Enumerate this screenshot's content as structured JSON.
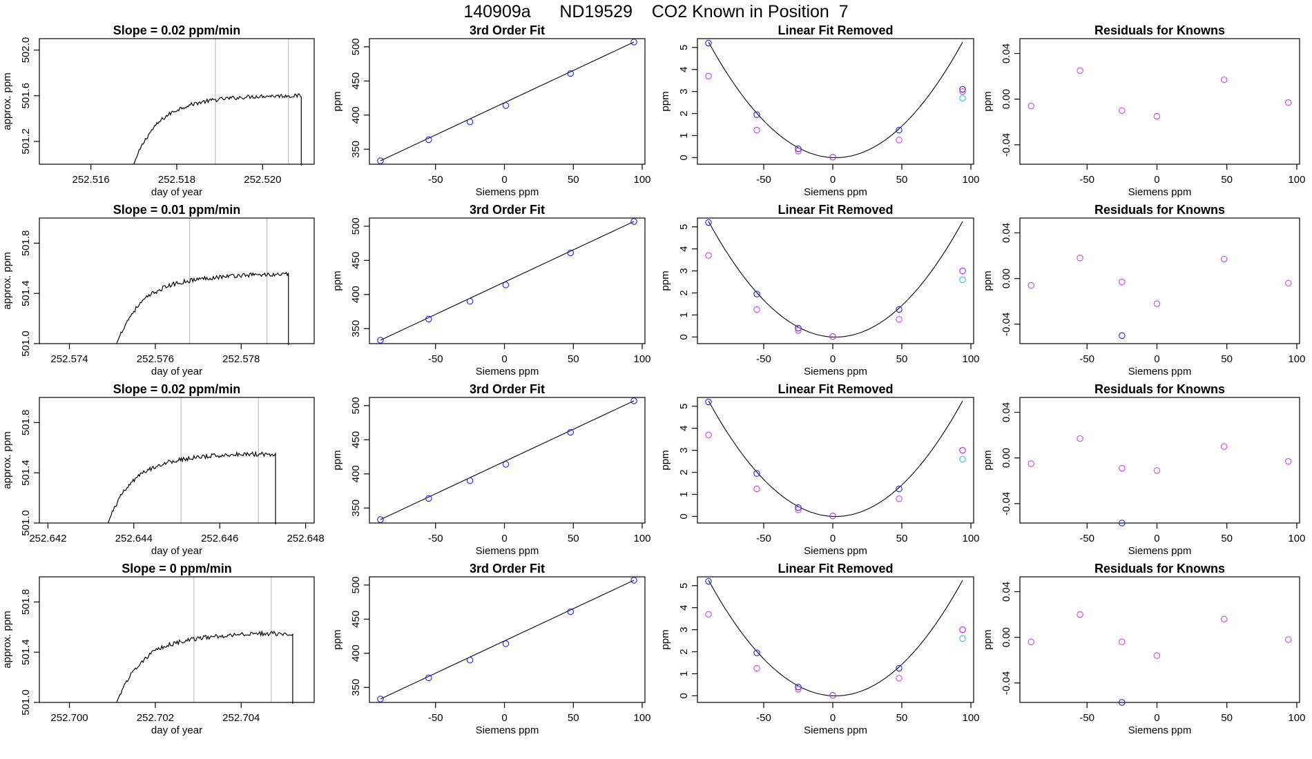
{
  "page_title": "140909a      ND19529    CO2 Known in Position  7",
  "chart_data": [
    {
      "type": "line",
      "title": "Slope =  0.02  ppm/min",
      "xlabel": "day of year",
      "ylabel": "approx. ppm",
      "xlim": [
        252.5148,
        252.5212
      ],
      "ylim": [
        501.0,
        502.1
      ],
      "xticks": [
        "252.516",
        "252.518",
        "252.520"
      ],
      "yticks": [
        "501.2",
        "501.6",
        "502.0"
      ],
      "vlines": [
        252.5189,
        252.5206
      ],
      "trace": [
        252.517,
        252.5209,
        501.0,
        501.55,
        501.6
      ]
    },
    {
      "type": "scatter",
      "title": "3rd Order Fit",
      "xlabel": "Siemens ppm",
      "ylabel": "ppm",
      "xlim": [
        -98,
        102
      ],
      "ylim": [
        328,
        512
      ],
      "xticks": [
        "-50",
        "0",
        "50",
        "100"
      ],
      "yticks": [
        "350",
        "400",
        "450",
        "500"
      ],
      "series": [
        {
          "x": [
            -90,
            -55,
            -25,
            1,
            48,
            94
          ],
          "y": [
            333,
            364,
            390,
            414,
            461,
            507
          ]
        }
      ]
    },
    {
      "type": "scatter",
      "title": "Linear Fit Removed",
      "xlabel": "Siemens ppm",
      "ylabel": "ppm",
      "xlim": [
        -98,
        102
      ],
      "ylim": [
        -0.3,
        5.4
      ],
      "xticks": [
        "-50",
        "0",
        "50",
        "100"
      ],
      "yticks": [
        "0",
        "1",
        "2",
        "3",
        "4",
        "5"
      ],
      "series": [
        {
          "x": [
            -90,
            -55,
            -25,
            0,
            48,
            94
          ],
          "y": [
            5.2,
            1.95,
            0.4,
            0.02,
            1.25,
            3.1
          ]
        },
        {
          "x": [
            -90,
            -55,
            -25,
            0,
            48,
            94
          ],
          "y": [
            3.7,
            1.25,
            0.3,
            0.02,
            0.8,
            3.0
          ]
        },
        {
          "x": [
            94
          ],
          "y": [
            2.7
          ]
        }
      ]
    },
    {
      "type": "scatter",
      "title": "Residuals for Knowns",
      "xlabel": "Siemens ppm",
      "ylabel": "ppm",
      "xlim": [
        -98,
        102
      ],
      "ylim": [
        -0.057,
        0.053
      ],
      "xticks": [
        "-50",
        "0",
        "50",
        "100"
      ],
      "yticks": [
        "-0.04",
        "0.00",
        "0.04"
      ],
      "series": [
        {
          "x": [
            -90,
            -55,
            -25,
            0,
            48,
            94
          ],
          "y": [
            -0.006,
            0.025,
            -0.01,
            -0.015,
            0.017,
            -0.003
          ]
        }
      ]
    },
    {
      "type": "line",
      "title": "Slope =  0.01  ppm/min",
      "xlabel": "day of year",
      "ylabel": "approx. ppm",
      "xlim": [
        252.5733,
        252.5797
      ],
      "ylim": [
        501.0,
        502.0
      ],
      "xticks": [
        "252.574",
        "252.576",
        "252.578"
      ],
      "yticks": [
        "501.0",
        "501.4",
        "501.8"
      ],
      "vlines": [
        252.5768,
        252.5786
      ],
      "trace": [
        252.5751,
        252.5791,
        501.0,
        501.5,
        501.55
      ]
    },
    {
      "type": "scatter",
      "title": "3rd Order Fit",
      "xlabel": "Siemens ppm",
      "ylabel": "ppm",
      "xlim": [
        -98,
        102
      ],
      "ylim": [
        328,
        512
      ],
      "xticks": [
        "-50",
        "0",
        "50",
        "100"
      ],
      "yticks": [
        "350",
        "400",
        "450",
        "500"
      ],
      "series": [
        {
          "x": [
            -90,
            -55,
            -25,
            1,
            48,
            94
          ],
          "y": [
            333,
            364,
            390,
            414,
            461,
            507
          ]
        }
      ]
    },
    {
      "type": "scatter",
      "title": "Linear Fit Removed",
      "xlabel": "Siemens ppm",
      "ylabel": "ppm",
      "xlim": [
        -98,
        102
      ],
      "ylim": [
        -0.3,
        5.4
      ],
      "xticks": [
        "-50",
        "0",
        "50",
        "100"
      ],
      "yticks": [
        "0",
        "1",
        "2",
        "3",
        "4",
        "5"
      ],
      "series": [
        {
          "x": [
            -90,
            -55,
            -25,
            0,
            48,
            94
          ],
          "y": [
            5.2,
            1.95,
            0.4,
            0.02,
            1.25,
            3.0
          ]
        },
        {
          "x": [
            -90,
            -55,
            -25,
            0,
            48,
            94
          ],
          "y": [
            3.7,
            1.25,
            0.3,
            0.02,
            0.8,
            3.0
          ]
        },
        {
          "x": [
            94
          ],
          "y": [
            2.6
          ]
        }
      ]
    },
    {
      "type": "scatter",
      "title": "Residuals for Knowns",
      "xlabel": "Siemens ppm",
      "ylabel": "ppm",
      "xlim": [
        -98,
        102
      ],
      "ylim": [
        -0.057,
        0.053
      ],
      "xticks": [
        "-50",
        "0",
        "50",
        "100"
      ],
      "yticks": [
        "-0.04",
        "0.00",
        "0.04"
      ],
      "series": [
        {
          "x": [
            -25
          ],
          "y": [
            -0.05
          ]
        },
        {
          "x": [
            -90,
            -55,
            -25,
            0,
            48,
            94
          ],
          "y": [
            -0.006,
            0.018,
            -0.003,
            -0.022,
            0.017,
            -0.004
          ]
        }
      ]
    },
    {
      "type": "line",
      "title": "Slope =  0.02  ppm/min",
      "xlabel": "day of year",
      "ylabel": "approx. ppm",
      "xlim": [
        252.6418,
        252.6482
      ],
      "ylim": [
        501.0,
        502.0
      ],
      "xticks": [
        "252.642",
        "252.644",
        "252.646",
        "252.648"
      ],
      "yticks": [
        "501.0",
        "501.4",
        "501.8"
      ],
      "vlines": [
        252.6451,
        252.6469
      ],
      "trace": [
        252.6434,
        252.6473,
        501.0,
        501.5,
        501.55
      ]
    },
    {
      "type": "scatter",
      "title": "3rd Order Fit",
      "xlabel": "Siemens ppm",
      "ylabel": "ppm",
      "xlim": [
        -98,
        102
      ],
      "ylim": [
        328,
        512
      ],
      "xticks": [
        "-50",
        "0",
        "50",
        "100"
      ],
      "yticks": [
        "350",
        "400",
        "450",
        "500"
      ],
      "series": [
        {
          "x": [
            -90,
            -55,
            -25,
            1,
            48,
            94
          ],
          "y": [
            333,
            364,
            390,
            414,
            461,
            507
          ]
        }
      ]
    },
    {
      "type": "scatter",
      "title": "Linear Fit Removed",
      "xlabel": "Siemens ppm",
      "ylabel": "ppm",
      "xlim": [
        -98,
        102
      ],
      "ylim": [
        -0.3,
        5.4
      ],
      "xticks": [
        "-50",
        "0",
        "50",
        "100"
      ],
      "yticks": [
        "0",
        "1",
        "2",
        "3",
        "4",
        "5"
      ],
      "series": [
        {
          "x": [
            -90,
            -55,
            -25,
            0,
            48,
            94
          ],
          "y": [
            5.2,
            1.95,
            0.4,
            0.02,
            1.25,
            3.0
          ]
        },
        {
          "x": [
            -90,
            -55,
            -25,
            0,
            48,
            94
          ],
          "y": [
            3.7,
            1.25,
            0.3,
            0.02,
            0.8,
            3.0
          ]
        },
        {
          "x": [
            94
          ],
          "y": [
            2.6
          ]
        }
      ]
    },
    {
      "type": "scatter",
      "title": "Residuals for Knowns",
      "xlabel": "Siemens ppm",
      "ylabel": "ppm",
      "xlim": [
        -98,
        102
      ],
      "ylim": [
        -0.057,
        0.053
      ],
      "xticks": [
        "-50",
        "0",
        "50",
        "100"
      ],
      "yticks": [
        "-0.04",
        "0.00",
        "0.04"
      ],
      "series": [
        {
          "x": [
            -25
          ],
          "y": [
            -0.057
          ]
        },
        {
          "x": [
            -90,
            -55,
            -25,
            0,
            48,
            94
          ],
          "y": [
            -0.005,
            0.017,
            -0.009,
            -0.011,
            0.01,
            -0.003
          ]
        }
      ]
    },
    {
      "type": "line",
      "title": "Slope =  0  ppm/min",
      "xlabel": "day of year",
      "ylabel": "approx. ppm",
      "xlim": [
        252.6993,
        252.7057
      ],
      "ylim": [
        501.0,
        502.0
      ],
      "xticks": [
        "252.700",
        "252.702",
        "252.704"
      ],
      "yticks": [
        "501.0",
        "501.4",
        "501.8"
      ],
      "vlines": [
        252.7029,
        252.7047
      ],
      "trace": [
        252.7011,
        252.7052,
        501.0,
        501.5,
        501.55
      ]
    },
    {
      "type": "scatter",
      "title": "3rd Order Fit",
      "xlabel": "Siemens ppm",
      "ylabel": "ppm",
      "xlim": [
        -98,
        102
      ],
      "ylim": [
        328,
        512
      ],
      "xticks": [
        "-50",
        "0",
        "50",
        "100"
      ],
      "yticks": [
        "350",
        "400",
        "450",
        "500"
      ],
      "series": [
        {
          "x": [
            -90,
            -55,
            -25,
            1,
            48,
            94
          ],
          "y": [
            333,
            364,
            390,
            414,
            461,
            507
          ]
        }
      ]
    },
    {
      "type": "scatter",
      "title": "Linear Fit Removed",
      "xlabel": "Siemens ppm",
      "ylabel": "ppm",
      "xlim": [
        -98,
        102
      ],
      "ylim": [
        -0.3,
        5.4
      ],
      "xticks": [
        "-50",
        "0",
        "50",
        "100"
      ],
      "yticks": [
        "0",
        "1",
        "2",
        "3",
        "4",
        "5"
      ],
      "series": [
        {
          "x": [
            -90,
            -55,
            -25,
            0,
            48,
            94
          ],
          "y": [
            5.2,
            1.95,
            0.4,
            0.02,
            1.25,
            3.0
          ]
        },
        {
          "x": [
            -90,
            -55,
            -25,
            0,
            48,
            94
          ],
          "y": [
            3.7,
            1.25,
            0.3,
            0.02,
            0.8,
            3.0
          ]
        },
        {
          "x": [
            94
          ],
          "y": [
            2.6
          ]
        }
      ]
    },
    {
      "type": "scatter",
      "title": "Residuals for Knowns",
      "xlabel": "Siemens ppm",
      "ylabel": "ppm",
      "xlim": [
        -98,
        102
      ],
      "ylim": [
        -0.057,
        0.053
      ],
      "xticks": [
        "-50",
        "0",
        "50",
        "100"
      ],
      "yticks": [
        "-0.04",
        "0.00",
        "0.04"
      ],
      "series": [
        {
          "x": [
            -25
          ],
          "y": [
            -0.057
          ]
        },
        {
          "x": [
            -90,
            -55,
            -25,
            0,
            48,
            94
          ],
          "y": [
            -0.004,
            0.02,
            -0.004,
            -0.016,
            0.016,
            -0.002
          ]
        }
      ]
    }
  ],
  "colors": {
    "axis": "#000000",
    "vline": "#bfbfbf",
    "blue": "#2222dd",
    "magenta": "#cc44ee",
    "cyan": "#22c8dd",
    "trace": "#000000"
  }
}
